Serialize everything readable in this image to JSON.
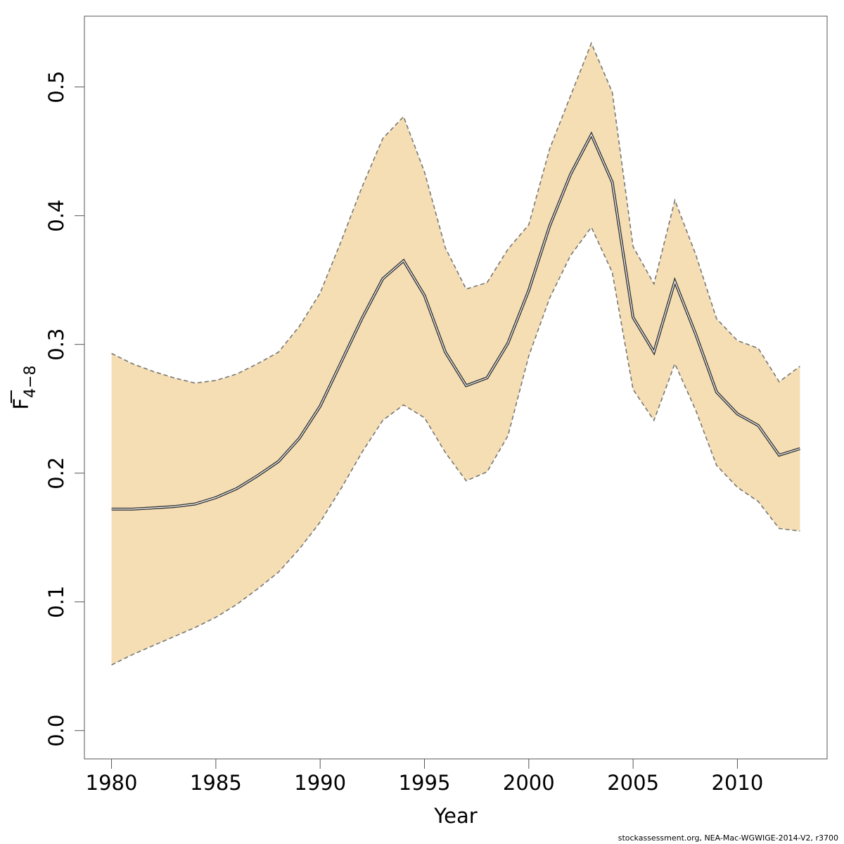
{
  "chart_data": {
    "type": "line",
    "xlabel": "Year",
    "ylabel_main": "F",
    "ylabel_sub": "4−8",
    "xlim": [
      1978.7,
      2014.3
    ],
    "ylim": [
      -0.022,
      0.555
    ],
    "xticks": [
      1980,
      1985,
      1990,
      1995,
      2000,
      2005,
      2010
    ],
    "yticks": [
      0.0,
      0.1,
      0.2,
      0.3,
      0.4,
      0.5
    ],
    "ytick_labels": [
      "0.0",
      "0.1",
      "0.2",
      "0.3",
      "0.4",
      "0.5"
    ],
    "band_color": "#F5DEB3",
    "line_color": "#333333",
    "x": [
      1980,
      1981,
      1982,
      1983,
      1984,
      1985,
      1986,
      1987,
      1988,
      1989,
      1990,
      1991,
      1992,
      1993,
      1994,
      1995,
      1996,
      1997,
      1998,
      1999,
      2000,
      2001,
      2002,
      2003,
      2004,
      2005,
      2006,
      2007,
      2008,
      2009,
      2010,
      2011,
      2012,
      2013
    ],
    "series": [
      {
        "values": [
          0.172,
          0.172,
          0.173,
          0.174,
          0.176,
          0.181,
          0.188,
          0.198,
          0.209,
          0.227,
          0.252,
          0.286,
          0.32,
          0.351,
          0.365,
          0.338,
          0.294,
          0.268,
          0.274,
          0.301,
          0.342,
          0.392,
          0.432,
          0.463,
          0.426,
          0.321,
          0.294,
          0.349,
          0.308,
          0.263,
          0.246,
          0.237,
          0.214,
          0.219
        ]
      },
      {
        "values": [
          0.293,
          0.285,
          0.279,
          0.274,
          0.27,
          0.272,
          0.277,
          0.285,
          0.294,
          0.314,
          0.34,
          0.38,
          0.422,
          0.46,
          0.477,
          0.434,
          0.375,
          0.343,
          0.348,
          0.374,
          0.393,
          0.452,
          0.493,
          0.534,
          0.496,
          0.376,
          0.347,
          0.412,
          0.37,
          0.32,
          0.303,
          0.297,
          0.271,
          0.283
        ]
      },
      {
        "values": [
          0.051,
          0.059,
          0.066,
          0.073,
          0.08,
          0.088,
          0.098,
          0.11,
          0.123,
          0.141,
          0.162,
          0.188,
          0.216,
          0.241,
          0.253,
          0.243,
          0.216,
          0.194,
          0.201,
          0.229,
          0.291,
          0.336,
          0.369,
          0.391,
          0.356,
          0.265,
          0.241,
          0.285,
          0.249,
          0.206,
          0.189,
          0.178,
          0.157,
          0.155
        ]
      }
    ]
  },
  "footer": "stockassessment.org, NEA-Mac-WGWIGE-2014-V2, r3700"
}
